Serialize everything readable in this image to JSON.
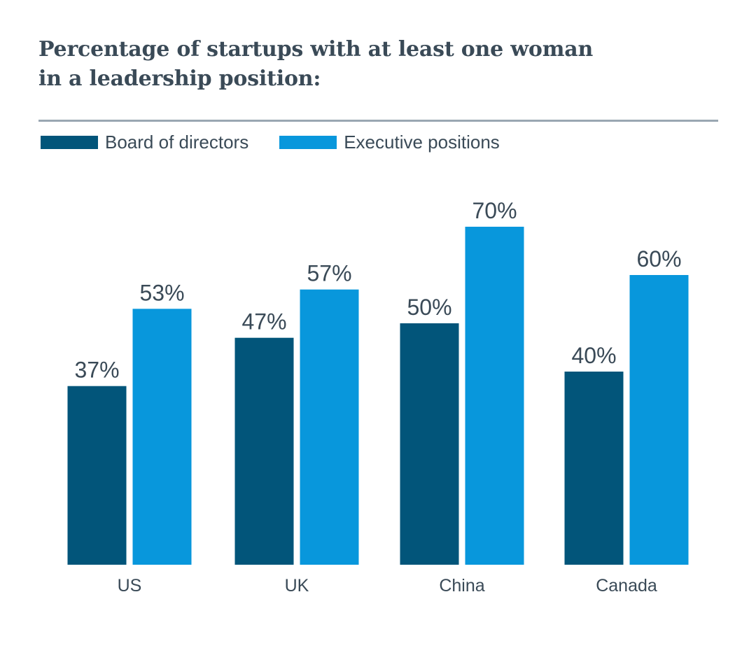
{
  "title_lines": [
    "Percentage of startups with at least one woman",
    "in a leadership position:"
  ],
  "colors": {
    "board": "#02557a",
    "executive": "#0897dc",
    "text": "#3a4a57",
    "rule": "#9aa7b2"
  },
  "chart_data": {
    "type": "bar",
    "title": "Percentage of startups with at least one woman in a leadership position:",
    "categories": [
      "US",
      "UK",
      "China",
      "Canada"
    ],
    "series": [
      {
        "name": "Board of directors",
        "values": [
          37,
          47,
          50,
          40
        ],
        "labels": [
          "37%",
          "47%",
          "50%",
          "40%"
        ]
      },
      {
        "name": "Executive positions",
        "values": [
          53,
          57,
          70,
          60
        ],
        "labels": [
          "53%",
          "57%",
          "70%",
          "60%"
        ]
      }
    ],
    "ylim": [
      0,
      100
    ],
    "grid": false,
    "legend_position": "top-left"
  }
}
